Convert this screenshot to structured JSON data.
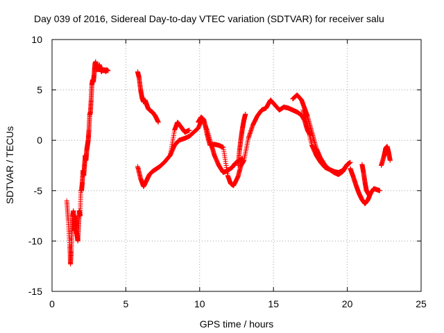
{
  "chart_data": {
    "type": "scatter",
    "title": "Day 039 of 2016, Sidereal Day-to-day VTEC variation (SDTVAR) for receiver salu",
    "xlabel": "GPS time / hours",
    "ylabel": "SDTVAR / TECUs",
    "xlim": [
      0,
      25
    ],
    "ylim": [
      -15,
      10
    ],
    "xticks": [
      0,
      5,
      10,
      15,
      20,
      25
    ],
    "yticks": [
      -15,
      -10,
      -5,
      0,
      5,
      10
    ],
    "xtick_labels": [
      "0",
      "5",
      "10",
      "15",
      "20",
      "25"
    ],
    "ytick_labels": [
      "-15",
      "-10",
      "-5",
      "0",
      "5",
      "10"
    ],
    "grid": true,
    "marker": "plus",
    "color": "#ff0000",
    "series": [
      {
        "name": "SDTVAR",
        "segments": [
          {
            "x": [
              1.0,
              1.1,
              1.2,
              1.25,
              1.3,
              1.35,
              1.4,
              1.45,
              1.5,
              1.55,
              1.6,
              1.65,
              1.7,
              1.75,
              1.8,
              1.85,
              1.9,
              1.95,
              2.0,
              2.05,
              2.1,
              2.15,
              2.2,
              2.25,
              2.3,
              2.35,
              2.4,
              2.45,
              2.5,
              2.55,
              2.6,
              2.65,
              2.7,
              2.75,
              2.8,
              2.85,
              2.9,
              2.95,
              3.0,
              3.05,
              3.1,
              3.15,
              3.2,
              3.25,
              3.3,
              3.35,
              3.4,
              3.45,
              3.5,
              3.55,
              3.6,
              3.65,
              3.7,
              3.8
            ],
            "y": [
              -6.0,
              -8.0,
              -10.5,
              -12.3,
              -11.0,
              -9.0,
              -7.5,
              -7.0,
              -9.0,
              -8.5,
              -7.5,
              -9.0,
              -9.5,
              -10.0,
              -8.5,
              -7.0,
              -7.5,
              -5.0,
              -5.0,
              -4.2,
              -3.0,
              -3.5,
              -2.5,
              -1.5,
              -2.0,
              -1.0,
              -0.5,
              0.0,
              1.0,
              2.5,
              2.8,
              4.0,
              5.5,
              6.0,
              5.8,
              6.5,
              7.5,
              7.8,
              7.3,
              7.0,
              7.2,
              7.0,
              7.5,
              7.2,
              7.0,
              6.8,
              7.1,
              6.9,
              7.0,
              6.9,
              7.0,
              6.8,
              7.0,
              6.9
            ]
          },
          {
            "x": [
              5.8,
              5.9,
              6.0,
              6.1,
              6.2,
              6.3,
              6.4,
              6.5,
              6.6,
              6.8,
              7.0,
              7.2
            ],
            "y": [
              6.8,
              6.2,
              5.0,
              4.2,
              3.8,
              4.0,
              3.6,
              3.2,
              3.0,
              2.8,
              2.4,
              1.8
            ]
          },
          {
            "x": [
              5.8,
              6.0,
              6.2,
              6.4,
              6.6,
              6.8,
              7.0,
              7.3,
              7.6,
              8.0,
              8.3,
              8.5,
              8.8,
              9.0,
              9.3
            ],
            "y": [
              -2.6,
              -3.8,
              -4.6,
              -4.0,
              -3.4,
              -3.1,
              -2.9,
              -2.6,
              -2.2,
              -1.5,
              1.0,
              1.8,
              1.2,
              0.8,
              1.0
            ]
          },
          {
            "x": [
              8.0,
              8.3,
              8.6,
              9.0,
              9.3,
              9.6,
              9.9,
              10.2,
              10.5,
              10.8,
              11.0,
              11.3,
              11.6,
              11.9,
              12.2,
              12.4,
              12.6,
              12.9
            ],
            "y": [
              -1.5,
              -0.5,
              0.0,
              0.2,
              0.4,
              0.8,
              1.2,
              2.2,
              1.0,
              -0.5,
              -1.5,
              -2.5,
              -3.2,
              -3.0,
              -2.7,
              -2.3,
              -2.1,
              -1.8
            ]
          },
          {
            "x": [
              9.9,
              10.1,
              10.3,
              10.5,
              10.7,
              11.0,
              11.3,
              11.6,
              11.9,
              12.1,
              12.3,
              12.6,
              12.8,
              13.0
            ],
            "y": [
              1.8,
              2.3,
              2.0,
              0.6,
              -0.5,
              -0.4,
              -0.5,
              -0.7,
              -3.5,
              -4.3,
              -4.5,
              -3.6,
              -2.5,
              -2.0
            ]
          },
          {
            "x": [
              12.6,
              12.7,
              12.8,
              12.9,
              13.0,
              13.1
            ],
            "y": [
              -2.5,
              -1.0,
              0.2,
              1.2,
              2.0,
              2.6
            ]
          },
          {
            "x": [
              13.0,
              13.3,
              13.6,
              13.9,
              14.2,
              14.5,
              14.8,
              15.1,
              15.4,
              15.7,
              16.0,
              16.3,
              16.6,
              16.9,
              17.1,
              17.3,
              17.5
            ],
            "y": [
              -2.0,
              0.2,
              1.5,
              2.4,
              3.0,
              3.2,
              4.0,
              3.5,
              3.0,
              3.3,
              3.2,
              3.0,
              2.8,
              2.5,
              2.0,
              1.0,
              0.5
            ]
          },
          {
            "x": [
              16.3,
              16.6,
              16.9,
              17.1,
              17.3,
              17.6,
              17.9,
              18.2,
              18.5,
              18.8,
              19.1,
              19.4,
              19.7,
              20.0,
              20.2
            ],
            "y": [
              4.1,
              4.5,
              4.0,
              3.2,
              2.4,
              0.8,
              -0.8,
              -1.8,
              -2.5,
              -2.9,
              -3.1,
              -3.2,
              -3.0,
              -2.4,
              -2.2
            ]
          },
          {
            "x": [
              17.0,
              17.3,
              17.6,
              17.9,
              18.2,
              18.5,
              18.8,
              19.1,
              19.4,
              19.7,
              20.0,
              20.2
            ],
            "y": [
              3.0,
              1.5,
              -0.5,
              -1.5,
              -2.2,
              -2.7,
              -2.9,
              -3.2,
              -3.4,
              -3.1,
              -2.4,
              -2.2
            ]
          },
          {
            "x": [
              20.2,
              20.4,
              20.6,
              20.8,
              21.0,
              21.2,
              21.4,
              21.6,
              21.8,
              22.0,
              22.2
            ],
            "y": [
              -2.8,
              -3.6,
              -4.5,
              -5.3,
              -5.9,
              -6.3,
              -5.9,
              -5.2,
              -4.8,
              -4.9,
              -5.0
            ]
          },
          {
            "x": [
              21.0,
              21.1,
              21.2,
              21.3,
              21.5
            ],
            "y": [
              -2.4,
              -3.2,
              -4.2,
              -5.0,
              -5.5
            ]
          },
          {
            "x": [
              22.3,
              22.5,
              22.6,
              22.7,
              22.8,
              22.9
            ],
            "y": [
              -2.5,
              -1.5,
              -0.8,
              -0.6,
              -1.2,
              -2.0
            ]
          }
        ]
      }
    ]
  }
}
